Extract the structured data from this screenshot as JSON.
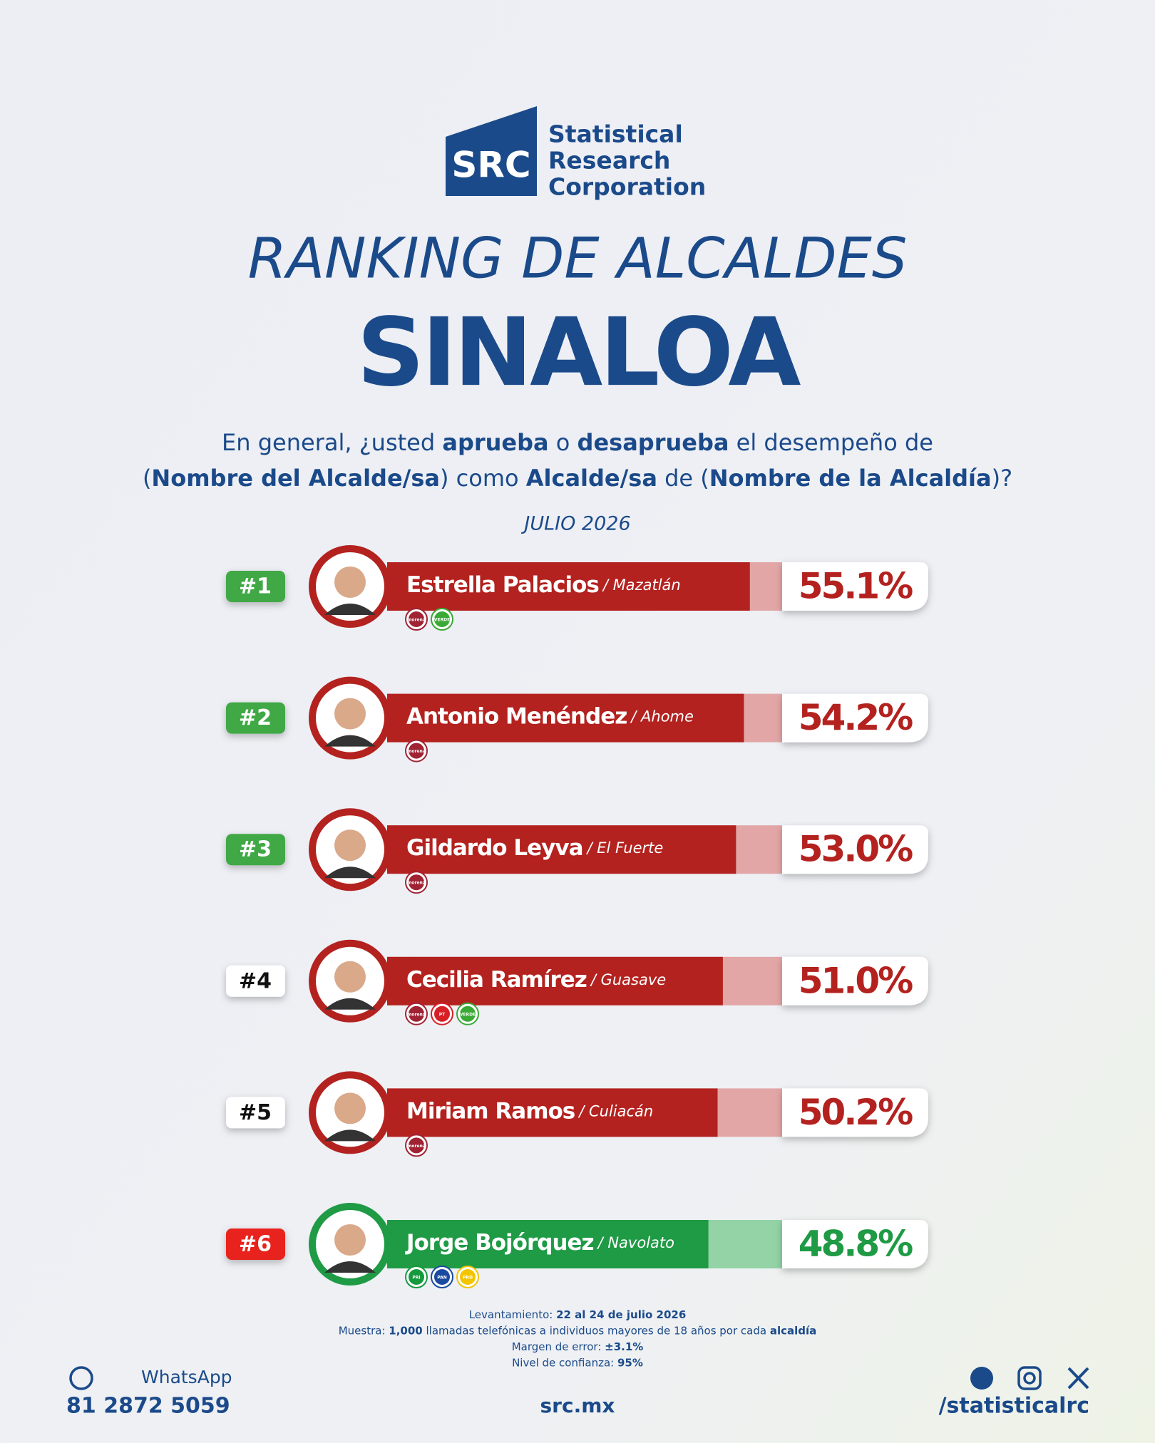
{
  "header": {
    "logo": "SRC",
    "brand": [
      "Statistical",
      "Research",
      "Corporation"
    ]
  },
  "chart_data": {
    "type": "bar",
    "title": "RANKING DE ALCALDES",
    "subtitle": "SINALOA",
    "question": [
      [
        {
          "t": "En general, ¿usted ",
          "b": false
        },
        {
          "t": "aprueba",
          "b": true
        },
        {
          "t": " o ",
          "b": false
        },
        {
          "t": "desaprueba",
          "b": true
        },
        {
          "t": " el desempeño de",
          "b": false
        }
      ],
      [
        {
          "t": "(",
          "b": false
        },
        {
          "t": "Nombre del Alcalde/sa",
          "b": true
        },
        {
          "t": ") como ",
          "b": false
        },
        {
          "t": "Alcalde/sa",
          "b": true
        },
        {
          "t": " de (",
          "b": false
        },
        {
          "t": "Nombre de la Alcaldía",
          "b": true
        },
        {
          "t": ")?",
          "b": false
        }
      ]
    ],
    "date": "JULIO 2026",
    "ranks": [
      "#1",
      "#2",
      "#3",
      "#4",
      "#5",
      "#6"
    ],
    "rank_colors": [
      "#3fa844",
      "#3fa844",
      "#3fa844",
      "#ffffff",
      "#ffffff",
      "#e8201c"
    ],
    "categories": [
      "Estrella Palacios",
      "Antonio Menéndez",
      "Gildardo Leyva",
      "Cecilia Ramírez",
      "Miriam Ramos",
      "Jorge Bojórquez"
    ],
    "places": [
      "/ Mazatlán",
      "/ Ahome",
      "/ El Fuerte",
      "/ Guasave",
      "/ Culiacán",
      "/ Navolato"
    ],
    "parties": [
      [
        {
          "label": "morena",
          "color": "#a02334"
        },
        {
          "label": "VERDE",
          "color": "#3aa935"
        }
      ],
      [
        {
          "label": "morena",
          "color": "#a02334"
        }
      ],
      [
        {
          "label": "morena",
          "color": "#a02334"
        }
      ],
      [
        {
          "label": "morena",
          "color": "#a02334"
        },
        {
          "label": "PT",
          "color": "#d71f26"
        },
        {
          "label": "VERDE",
          "color": "#3aa935"
        }
      ],
      [
        {
          "label": "morena",
          "color": "#a02334"
        }
      ],
      [
        {
          "label": "PRI",
          "color": "#159a3e"
        },
        {
          "label": "PAN",
          "color": "#1a4aa0"
        },
        {
          "label": "PRD",
          "color": "#f2c500"
        }
      ]
    ],
    "values": [
      55.1,
      54.2,
      53.0,
      51.0,
      50.2,
      48.8
    ],
    "value_labels": [
      "55.1%",
      "54.2%",
      "53.0%",
      "51.0%",
      "50.2%",
      "48.8%"
    ],
    "colors": [
      "#b3221f",
      "#b3221f",
      "#b3221f",
      "#b3221f",
      "#b3221f",
      "#1f9a45"
    ],
    "xlim": [
      0,
      60
    ]
  },
  "footer": {
    "notes": [
      [
        {
          "t": "Levantamiento: ",
          "b": false
        },
        {
          "t": "22 al 24 de julio 2026",
          "b": true
        }
      ],
      [
        {
          "t": "Muestra: ",
          "b": false
        },
        {
          "t": "1,000",
          "b": true
        },
        {
          "t": " llamadas telefónicas a individuos mayores de 18 años por cada ",
          "b": false
        },
        {
          "t": "alcaldía",
          "b": true
        }
      ],
      [
        {
          "t": "Margen de error: ",
          "b": false
        },
        {
          "t": "±3.1%",
          "b": true
        }
      ],
      [
        {
          "t": "Nivel de confianza: ",
          "b": false
        },
        {
          "t": "95%",
          "b": true
        }
      ]
    ],
    "whatsapp": "WhatsApp",
    "phone": "81 2872 5059",
    "site": "src.mx",
    "handle": "/statisticalrc"
  }
}
